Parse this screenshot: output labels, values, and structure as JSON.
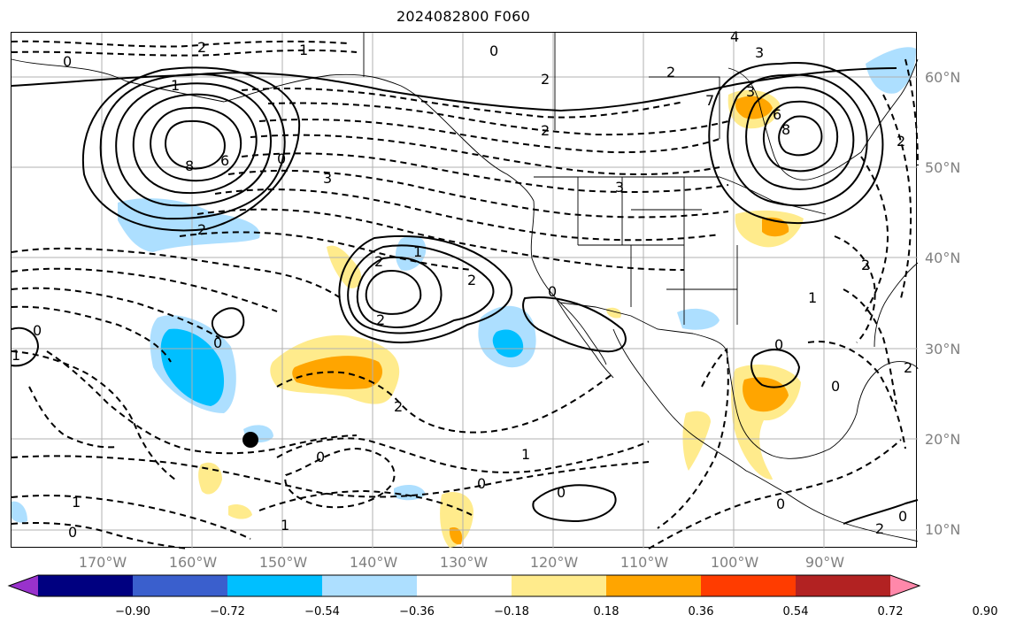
{
  "title": "2024082800 F060",
  "lat_labels": [
    "60°N",
    "50°N",
    "40°N",
    "30°N",
    "20°N",
    "10°N"
  ],
  "lon_labels": [
    "170°W",
    "160°W",
    "150°W",
    "140°W",
    "130°W",
    "120°W",
    "110°W",
    "100°W",
    "90°W"
  ],
  "contour_labels": [
    "0",
    "2",
    "1",
    "1",
    "0",
    "2",
    "4",
    "3",
    "3",
    "2",
    "7",
    "8",
    "6",
    "8",
    "6",
    "0",
    "3",
    "2",
    "2",
    "3",
    "2",
    "1",
    "2",
    "2",
    "0",
    "0",
    "0",
    "1",
    "2",
    "2",
    "2",
    "0",
    "0",
    "1",
    "1",
    "0",
    "0",
    "0",
    "0",
    "1",
    "0",
    "2",
    "1",
    "2",
    "0"
  ],
  "colorbar": {
    "colors": [
      "#9932CC",
      "#000080",
      "#3A5FCD",
      "#00BFFF",
      "#ADDFFF",
      "#FFFFFF",
      "#FFEB8C",
      "#FFA500",
      "#FF3C00",
      "#B22222",
      "#FF88AA"
    ],
    "ticks": [
      "−0.90",
      "−0.72",
      "−0.54",
      "−0.36",
      "−0.18",
      "0.18",
      "0.36",
      "0.54",
      "0.72",
      "0.90"
    ]
  },
  "marker": "station-dot"
}
